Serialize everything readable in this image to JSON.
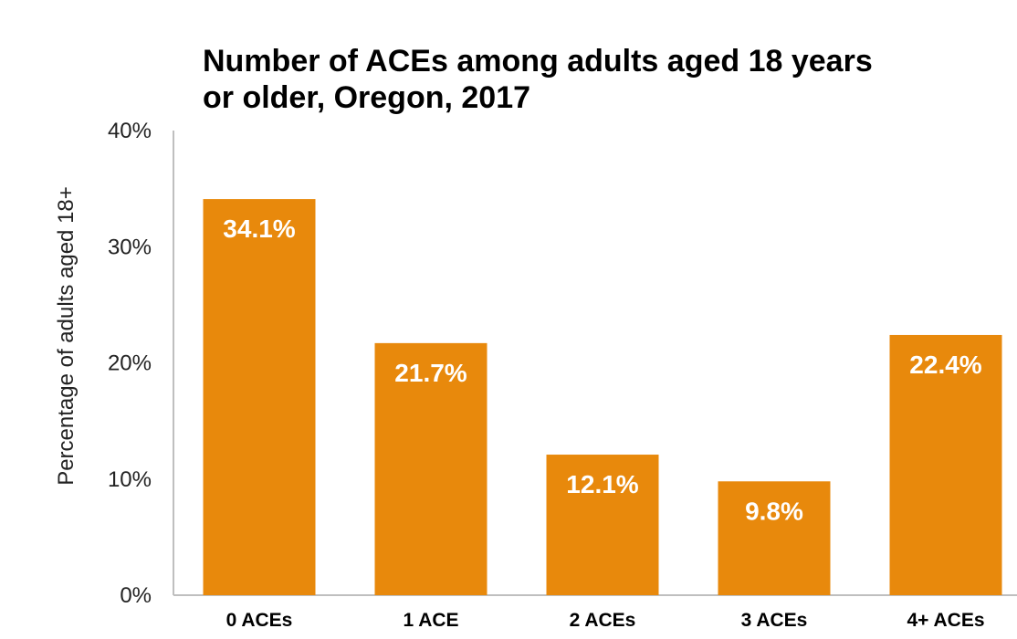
{
  "chart_data": {
    "type": "bar",
    "title": "Number of ACEs among adults aged 18 years or older, Oregon, 2017",
    "title_lines": [
      "Number of ACEs among adults aged 18 years",
      "or older, Oregon, 2017"
    ],
    "xlabel": "",
    "ylabel": "Percentage of adults aged 18+",
    "categories": [
      "0 ACEs",
      "1 ACE",
      "2 ACEs",
      "3 ACEs",
      "4+ ACEs"
    ],
    "values": [
      34.1,
      21.7,
      12.1,
      9.8,
      22.4
    ],
    "data_labels": [
      "34.1%",
      "21.7%",
      "12.1%",
      "9.8%",
      "22.4%"
    ],
    "ylim": [
      0,
      40
    ],
    "y_ticks": [
      0,
      10,
      20,
      30,
      40
    ],
    "y_tick_labels": [
      "0%",
      "10%",
      "20%",
      "30%",
      "40%"
    ],
    "grid": false,
    "legend": "none",
    "bar_color": "#E8890C",
    "data_label_color": "#FFFFFF"
  }
}
